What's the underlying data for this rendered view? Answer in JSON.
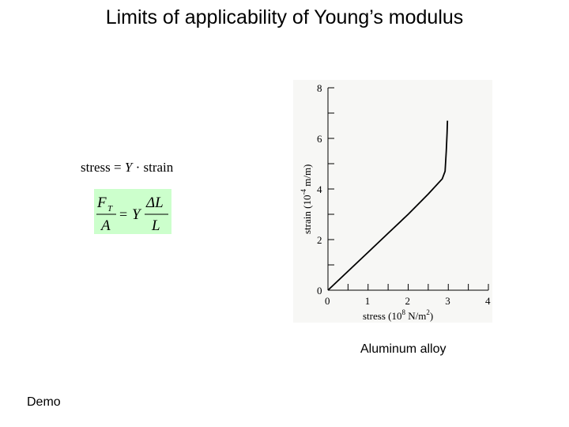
{
  "slide": {
    "title": "Limits of applicability of Young’s modulus",
    "caption": "Aluminum alloy",
    "demo_label": "Demo"
  },
  "equations": {
    "line1": {
      "lhs": "stress",
      "eq": "=",
      "symbol": "Y",
      "dot": "·",
      "rhs": "strain"
    },
    "line2": {
      "num_left": "F",
      "num_left_sub": "T",
      "den_left": "A",
      "eq": "=",
      "symbol": "Y",
      "num_right": "ΔL",
      "den_right": "L"
    },
    "box_color": "#ccffcc"
  },
  "chart_data": {
    "type": "line",
    "xlabel_main": "stress (10",
    "xlabel_exp": "8",
    "xlabel_unit": " N/m",
    "xlabel_unit_exp": "2",
    "xlabel_close": ")",
    "ylabel_main": "strain (10",
    "ylabel_exp": "-4",
    "ylabel_unit": " m/m)",
    "xlim": [
      0,
      4
    ],
    "ylim": [
      0,
      8
    ],
    "x_ticks": [
      "0",
      "1",
      "2",
      "3",
      "4"
    ],
    "y_ticks": [
      "0",
      "2",
      "4",
      "6",
      "8"
    ],
    "series": [
      {
        "x": [
          0,
          0.5,
          1.0,
          1.5,
          2.0,
          2.5,
          2.85,
          2.92,
          2.95,
          2.97,
          2.98
        ],
        "y": [
          0,
          0.75,
          1.5,
          2.25,
          3.0,
          3.8,
          4.4,
          4.7,
          5.5,
          6.2,
          6.7
        ]
      }
    ]
  }
}
